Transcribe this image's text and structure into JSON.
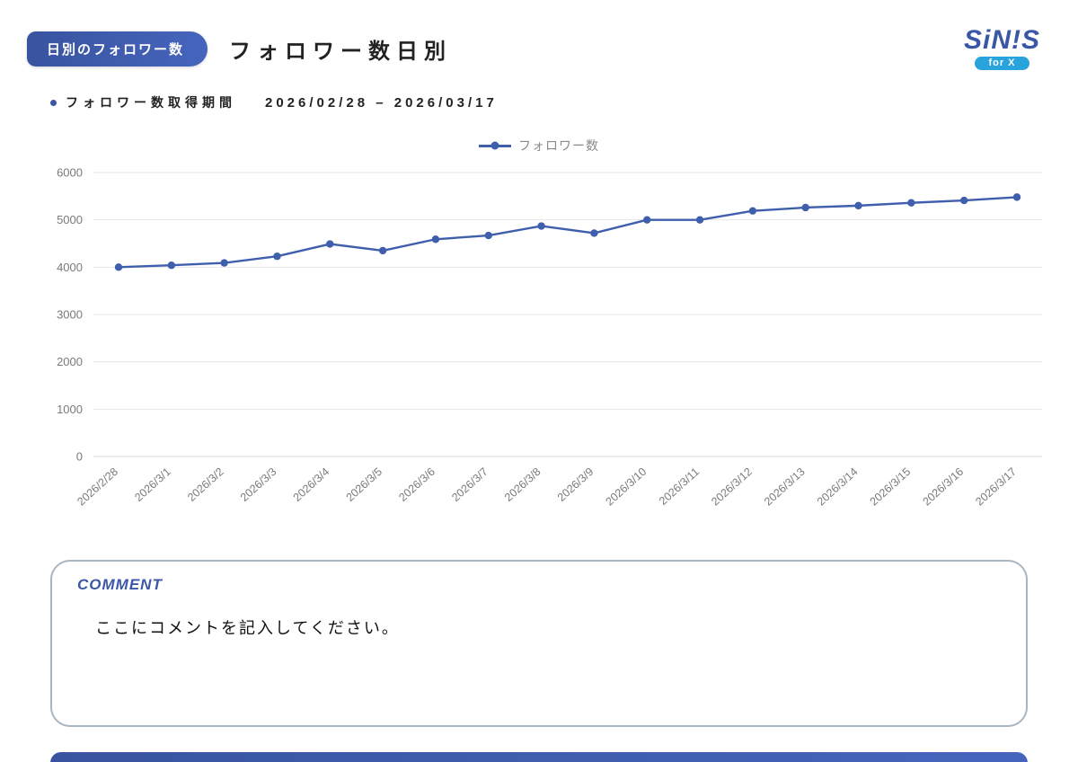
{
  "header": {
    "badge_label": "日別のフォロワー数",
    "title": "フォロワー数日別",
    "logo": {
      "brand": "SiN!S",
      "sub": "for X"
    }
  },
  "period": {
    "label": "フォロワー数取得期間",
    "value": "2026/02/28 – 2026/03/17"
  },
  "legend": {
    "label": "フォロワー数"
  },
  "chart_data": {
    "type": "line",
    "title": "",
    "xlabel": "",
    "ylabel": "",
    "categories": [
      "2026/2/28",
      "2026/3/1",
      "2026/3/2",
      "2026/3/3",
      "2026/3/4",
      "2026/3/5",
      "2026/3/6",
      "2026/3/7",
      "2026/3/8",
      "2026/3/9",
      "2026/3/10",
      "2026/3/11",
      "2026/3/12",
      "2026/3/13",
      "2026/3/14",
      "2026/3/15",
      "2026/3/16",
      "2026/3/17"
    ],
    "series": [
      {
        "name": "フォロワー数",
        "values": [
          4000,
          4040,
          4090,
          4230,
          4490,
          4350,
          4590,
          4670,
          4870,
          4720,
          5000,
          5000,
          5190,
          5260,
          5300,
          5360,
          5410,
          5480
        ]
      }
    ],
    "ylim": [
      0,
      6000
    ],
    "yticks": [
      0,
      1000,
      2000,
      3000,
      4000,
      5000,
      6000
    ],
    "grid": true,
    "legend_position": "top",
    "line_color": "#3f5fad"
  },
  "comment": {
    "label": "COMMENT",
    "text": "ここにコメントを記入してください。"
  },
  "colors": {
    "accent": "#3a57a7",
    "logo_sub_bg": "#29a3dc",
    "line": "#3f5fad",
    "grid": "#e6e6e6",
    "tick_text": "#7a7a7a",
    "comment_border": "#a9b4c4"
  }
}
